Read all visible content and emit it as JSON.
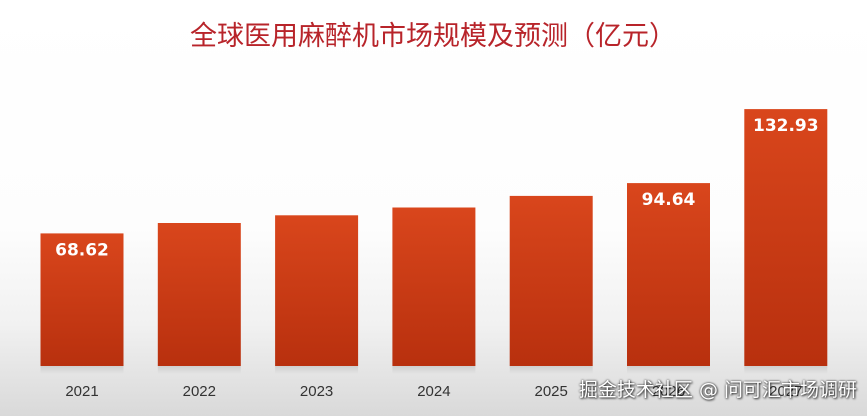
{
  "chart_data": {
    "type": "bar",
    "title": "全球医用麻醉机市场规模及预测（亿元）",
    "xlabel": "",
    "ylabel": "",
    "categories": [
      "2021",
      "2022",
      "2023",
      "2024",
      "2025",
      "2026",
      "2027"
    ],
    "values": [
      68.62,
      74.0,
      78.0,
      82.0,
      88.0,
      94.64,
      132.93
    ],
    "data_labels": [
      "68.62",
      "",
      "",
      "",
      "",
      "94.64",
      "132.93"
    ],
    "ylim": [
      0,
      148
    ],
    "bar_color_top": "#d9461c",
    "bar_color_bottom": "#b8300e",
    "grid": false,
    "legend": "none"
  },
  "watermark": "掘金技术社区 @ 问可汇市场调研"
}
